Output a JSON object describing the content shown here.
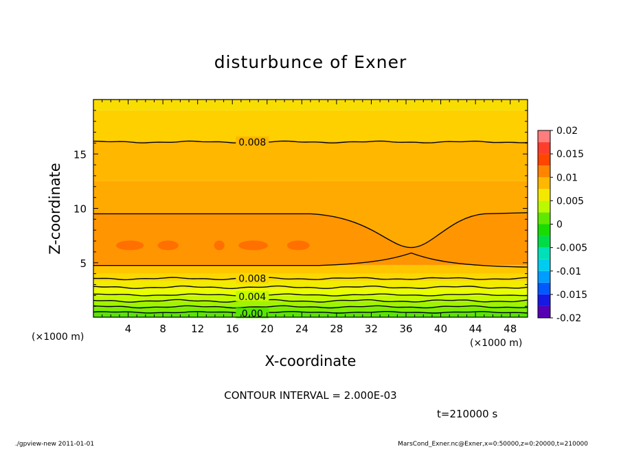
{
  "chart_data": {
    "type": "contour",
    "title": "disturbunce of Exner",
    "xlabel": "X-coordinate",
    "ylabel": "Z-coordinate",
    "x_unit": "(×1000 m)",
    "xlim": [
      0,
      50
    ],
    "ylim": [
      0,
      20
    ],
    "x_ticks": [
      4,
      8,
      12,
      16,
      20,
      24,
      28,
      32,
      36,
      40,
      44,
      48
    ],
    "y_ticks": [
      5,
      10,
      15
    ],
    "colorbar": {
      "ticks": [
        "0.02",
        "0.015",
        "0.01",
        "0.005",
        "0",
        "-0.005",
        "-0.01",
        "-0.015",
        "-0.02"
      ],
      "range": [
        -0.02,
        0.02
      ]
    },
    "contour_labels": [
      "0.008",
      "0.008",
      "0.004",
      "0.00"
    ],
    "contour_interval_text": "CONTOUR INTERVAL = 2.000E-03",
    "time_text": "t=210000 s",
    "bands": [
      {
        "z0": 0.0,
        "z1": 0.5,
        "value": 0.001
      },
      {
        "z0": 0.5,
        "z1": 1.0,
        "value": 0.002
      },
      {
        "z0": 1.0,
        "z1": 1.5,
        "value": 0.003
      },
      {
        "z0": 1.5,
        "z1": 2.0,
        "value": 0.004
      },
      {
        "z0": 2.0,
        "z1": 2.6,
        "value": 0.005
      },
      {
        "z0": 2.6,
        "z1": 3.3,
        "value": 0.006
      },
      {
        "z0": 3.3,
        "z1": 4.0,
        "value": 0.007
      },
      {
        "z0": 4.0,
        "z1": 4.8,
        "value": 0.008
      },
      {
        "z0": 4.8,
        "z1": 9.5,
        "value": 0.0105
      },
      {
        "z0": 9.5,
        "z1": 12.5,
        "value": 0.0095
      },
      {
        "z0": 12.5,
        "z1": 16.2,
        "value": 0.0088
      },
      {
        "z0": 16.2,
        "z1": 19.0,
        "value": 0.0075
      },
      {
        "z0": 19.0,
        "z1": 20.0,
        "value": 0.0068
      }
    ]
  },
  "footer": {
    "left": "./gpview-new  2011-01-01",
    "right": "MarsCond_Exner.nc@Exner,x=0:50000,z=0:20000,t=210000"
  }
}
